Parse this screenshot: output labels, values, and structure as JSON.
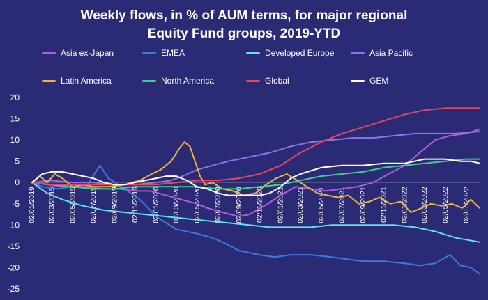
{
  "chart_data": {
    "type": "line",
    "title_line1": "Weekly flows, in % of AUM terms, for major regional",
    "title_line2": "Equity Fund groups, 2019-YTD",
    "xlabel": "",
    "ylabel": "",
    "ylim": [
      -25,
      20
    ],
    "yticks": [
      20,
      15,
      10,
      5,
      0,
      -5,
      -10,
      -15,
      -20,
      -25
    ],
    "xlim": [
      "2019-01-02",
      "2022-08-10"
    ],
    "xticks": [
      "02/01/2019",
      "02/03/2019",
      "02/05/2019",
      "02/07/2019",
      "02/09/2019",
      "02/11/2019",
      "02/01/2020",
      "02/03/2020",
      "02/05/2020",
      "02/07/2020",
      "02/09/2020",
      "02/11/2020",
      "02/01/2021",
      "02/03/2021",
      "02/05/2021",
      "02/07/2021",
      "02/09/2021",
      "02/11/2021",
      "02/01/2022",
      "02/03/2022",
      "02/05/2022",
      "02/07/2022"
    ],
    "grid": false,
    "legend_position": "top",
    "series": [
      {
        "name": "Asia ex-Japan",
        "color": "#b45bde",
        "points": [
          [
            "2019-01-02",
            0
          ],
          [
            "2019-02-15",
            -0.5
          ],
          [
            "2019-04-01",
            -1
          ],
          [
            "2019-06-01",
            -1
          ],
          [
            "2019-08-01",
            -1.5
          ],
          [
            "2019-09-15",
            -1.5
          ],
          [
            "2019-11-01",
            -2
          ],
          [
            "2019-12-15",
            -2
          ],
          [
            "2020-02-01",
            -3
          ],
          [
            "2020-03-15",
            -4
          ],
          [
            "2020-05-01",
            -5
          ],
          [
            "2020-06-01",
            -6
          ],
          [
            "2020-07-15",
            -7
          ],
          [
            "2020-09-01",
            -8
          ],
          [
            "2020-10-01",
            -7.5
          ],
          [
            "2020-11-15",
            -5.5
          ],
          [
            "2021-01-02",
            -3
          ],
          [
            "2021-02-15",
            -1
          ],
          [
            "2021-04-01",
            -1.5
          ],
          [
            "2021-05-15",
            -2
          ],
          [
            "2021-07-01",
            -1.5
          ],
          [
            "2021-08-15",
            -1
          ],
          [
            "2021-10-01",
            0
          ],
          [
            "2021-11-15",
            2
          ],
          [
            "2022-01-02",
            4
          ],
          [
            "2022-02-15",
            7
          ],
          [
            "2022-04-01",
            10
          ],
          [
            "2022-05-15",
            11
          ],
          [
            "2022-07-01",
            11.5
          ],
          [
            "2022-08-10",
            12.5
          ]
        ]
      },
      {
        "name": "EMEA",
        "color": "#3c7ae0",
        "points": [
          [
            "2019-01-02",
            0
          ],
          [
            "2019-02-01",
            -1
          ],
          [
            "2019-03-15",
            -1.5
          ],
          [
            "2019-05-01",
            -1
          ],
          [
            "2019-06-15",
            -0.5
          ],
          [
            "2019-07-20",
            4
          ],
          [
            "2019-08-15",
            1
          ],
          [
            "2019-10-01",
            -1.5
          ],
          [
            "2019-11-15",
            -4
          ],
          [
            "2020-01-02",
            -8
          ],
          [
            "2020-03-01",
            -11
          ],
          [
            "2020-05-01",
            -12
          ],
          [
            "2020-06-15",
            -13
          ],
          [
            "2020-07-15",
            -14
          ],
          [
            "2020-09-01",
            -16
          ],
          [
            "2020-11-01",
            -17
          ],
          [
            "2020-12-15",
            -17.5
          ],
          [
            "2021-02-01",
            -17
          ],
          [
            "2021-04-01",
            -17
          ],
          [
            "2021-06-01",
            -17.5
          ],
          [
            "2021-07-15",
            -18
          ],
          [
            "2021-09-01",
            -18.5
          ],
          [
            "2021-11-01",
            -18.5
          ],
          [
            "2022-01-02",
            -19
          ],
          [
            "2022-02-15",
            -19.5
          ],
          [
            "2022-04-01",
            -19
          ],
          [
            "2022-05-15",
            -17
          ],
          [
            "2022-06-15",
            -19.5
          ],
          [
            "2022-07-15",
            -20
          ],
          [
            "2022-08-10",
            -21.5
          ]
        ]
      },
      {
        "name": "Developed Europe",
        "color": "#5fe3ef",
        "points": [
          [
            "2019-01-02",
            0
          ],
          [
            "2019-02-15",
            -2.5
          ],
          [
            "2019-04-01",
            -4
          ],
          [
            "2019-06-01",
            -5.5
          ],
          [
            "2019-08-01",
            -6.5
          ],
          [
            "2019-10-01",
            -7
          ],
          [
            "2019-12-01",
            -7.5
          ],
          [
            "2020-02-01",
            -8
          ],
          [
            "2020-04-01",
            -8.5
          ],
          [
            "2020-06-01",
            -9
          ],
          [
            "2020-08-01",
            -9.5
          ],
          [
            "2020-10-01",
            -10
          ],
          [
            "2020-12-01",
            -10.5
          ],
          [
            "2021-02-01",
            -10.5
          ],
          [
            "2021-04-01",
            -10.5
          ],
          [
            "2021-06-01",
            -10
          ],
          [
            "2021-08-01",
            -10
          ],
          [
            "2021-10-01",
            -10
          ],
          [
            "2021-12-01",
            -10
          ],
          [
            "2022-02-01",
            -10.5
          ],
          [
            "2022-04-01",
            -11.5
          ],
          [
            "2022-06-01",
            -13
          ],
          [
            "2022-08-10",
            -14
          ]
        ]
      },
      {
        "name": "Asia Pacific",
        "color": "#8f72ec",
        "points": [
          [
            "2019-01-02",
            0
          ],
          [
            "2019-03-01",
            0.5
          ],
          [
            "2019-05-01",
            0
          ],
          [
            "2019-07-01",
            0
          ],
          [
            "2019-09-01",
            -0.5
          ],
          [
            "2019-11-01",
            -0.5
          ],
          [
            "2020-01-02",
            0
          ],
          [
            "2020-02-15",
            0.5
          ],
          [
            "2020-03-20",
            1.5
          ],
          [
            "2020-05-01",
            3
          ],
          [
            "2020-06-15",
            4
          ],
          [
            "2020-08-01",
            5
          ],
          [
            "2020-10-01",
            6
          ],
          [
            "2020-12-01",
            7
          ],
          [
            "2021-02-01",
            8.5
          ],
          [
            "2021-04-01",
            9.5
          ],
          [
            "2021-06-01",
            10
          ],
          [
            "2021-08-01",
            10.5
          ],
          [
            "2021-10-01",
            10.5
          ],
          [
            "2021-12-01",
            11
          ],
          [
            "2022-02-01",
            11.5
          ],
          [
            "2022-04-01",
            11.5
          ],
          [
            "2022-06-01",
            11.5
          ],
          [
            "2022-08-10",
            12
          ]
        ]
      },
      {
        "name": "Latin America",
        "color": "#f2b43c",
        "points": [
          [
            "2019-01-02",
            0
          ],
          [
            "2019-01-25",
            1.5
          ],
          [
            "2019-02-15",
            0
          ],
          [
            "2019-03-10",
            2
          ],
          [
            "2019-04-01",
            1
          ],
          [
            "2019-05-01",
            -1
          ],
          [
            "2019-06-01",
            -0.5
          ],
          [
            "2019-07-01",
            -1
          ],
          [
            "2019-08-15",
            -1
          ],
          [
            "2019-10-01",
            -0.5
          ],
          [
            "2019-11-15",
            0.5
          ],
          [
            "2019-12-20",
            2
          ],
          [
            "2020-01-15",
            3
          ],
          [
            "2020-02-15",
            5
          ],
          [
            "2020-03-10",
            8
          ],
          [
            "2020-03-25",
            9.5
          ],
          [
            "2020-04-10",
            8.5
          ],
          [
            "2020-04-25",
            5
          ],
          [
            "2020-05-10",
            1.5
          ],
          [
            "2020-05-25",
            -0.5
          ],
          [
            "2020-06-15",
            0
          ],
          [
            "2020-07-15",
            -1.5
          ],
          [
            "2020-08-15",
            -2
          ],
          [
            "2020-09-15",
            -3
          ],
          [
            "2020-10-20",
            -2.5
          ],
          [
            "2020-11-20",
            -0.5
          ],
          [
            "2020-12-20",
            1
          ],
          [
            "2021-01-20",
            2
          ],
          [
            "2021-02-20",
            0.5
          ],
          [
            "2021-03-20",
            -1
          ],
          [
            "2021-04-20",
            -2.5
          ],
          [
            "2021-05-20",
            -3
          ],
          [
            "2021-06-20",
            -3.5
          ],
          [
            "2021-07-20",
            -3
          ],
          [
            "2021-08-20",
            -5
          ],
          [
            "2021-09-20",
            -4.5
          ],
          [
            "2021-10-20",
            -3.5
          ],
          [
            "2021-11-20",
            -5
          ],
          [
            "2021-12-20",
            -4.5
          ],
          [
            "2022-01-20",
            -7
          ],
          [
            "2022-02-20",
            -6
          ],
          [
            "2022-03-20",
            -5
          ],
          [
            "2022-04-20",
            -5.5
          ],
          [
            "2022-05-20",
            -5
          ],
          [
            "2022-06-20",
            -6
          ],
          [
            "2022-07-15",
            -4
          ],
          [
            "2022-08-10",
            -6
          ]
        ]
      },
      {
        "name": "North America",
        "color": "#3fcf8e",
        "points": [
          [
            "2019-01-02",
            0
          ],
          [
            "2019-03-01",
            -0.5
          ],
          [
            "2019-05-01",
            -1
          ],
          [
            "2019-07-01",
            -1.5
          ],
          [
            "2019-09-01",
            -1.5
          ],
          [
            "2019-11-01",
            -1
          ],
          [
            "2020-01-02",
            -1
          ],
          [
            "2020-03-01",
            -1
          ],
          [
            "2020-05-01",
            -1
          ],
          [
            "2020-07-01",
            -1.5
          ],
          [
            "2020-09-01",
            -1.5
          ],
          [
            "2020-11-01",
            -1
          ],
          [
            "2021-01-02",
            -0.5
          ],
          [
            "2021-03-01",
            0.5
          ],
          [
            "2021-05-01",
            1.5
          ],
          [
            "2021-07-01",
            2
          ],
          [
            "2021-09-01",
            2.5
          ],
          [
            "2021-11-01",
            3.5
          ],
          [
            "2022-01-02",
            4
          ],
          [
            "2022-03-01",
            4.5
          ],
          [
            "2022-05-01",
            5
          ],
          [
            "2022-07-01",
            5.5
          ],
          [
            "2022-08-10",
            5.5
          ]
        ]
      },
      {
        "name": "Global",
        "color": "#e8455f",
        "points": [
          [
            "2019-01-02",
            0
          ],
          [
            "2019-03-01",
            -0.5
          ],
          [
            "2019-05-01",
            -0.5
          ],
          [
            "2019-07-01",
            -0.5
          ],
          [
            "2019-09-01",
            -0.5
          ],
          [
            "2019-11-01",
            -0.5
          ],
          [
            "2020-01-02",
            -0.5
          ],
          [
            "2020-03-01",
            0
          ],
          [
            "2020-05-01",
            0.5
          ],
          [
            "2020-07-01",
            0.5
          ],
          [
            "2020-09-01",
            1
          ],
          [
            "2020-11-01",
            2
          ],
          [
            "2021-01-02",
            4
          ],
          [
            "2021-03-01",
            7
          ],
          [
            "2021-05-01",
            9.5
          ],
          [
            "2021-07-01",
            11.5
          ],
          [
            "2021-09-01",
            13
          ],
          [
            "2021-11-01",
            14.5
          ],
          [
            "2022-01-02",
            16
          ],
          [
            "2022-03-01",
            17
          ],
          [
            "2022-05-01",
            17.5
          ],
          [
            "2022-07-01",
            17.5
          ],
          [
            "2022-08-10",
            17.5
          ]
        ]
      },
      {
        "name": "GEM",
        "color": "#ffffff",
        "points": [
          [
            "2019-01-02",
            0
          ],
          [
            "2019-02-01",
            2
          ],
          [
            "2019-03-01",
            2.5
          ],
          [
            "2019-04-01",
            2.5
          ],
          [
            "2019-05-01",
            2
          ],
          [
            "2019-06-01",
            1.5
          ],
          [
            "2019-07-01",
            1
          ],
          [
            "2019-08-01",
            0
          ],
          [
            "2019-09-01",
            -0.5
          ],
          [
            "2019-10-01",
            -0.5
          ],
          [
            "2019-11-01",
            0
          ],
          [
            "2019-12-01",
            0.5
          ],
          [
            "2020-01-02",
            1
          ],
          [
            "2020-02-01",
            1.5
          ],
          [
            "2020-03-01",
            1.5
          ],
          [
            "2020-04-01",
            0.5
          ],
          [
            "2020-05-01",
            -1
          ],
          [
            "2020-06-01",
            -1.5
          ],
          [
            "2020-07-01",
            -2.5
          ],
          [
            "2020-08-01",
            -3
          ],
          [
            "2020-09-01",
            -3
          ],
          [
            "2020-10-01",
            -3
          ],
          [
            "2020-11-01",
            -3
          ],
          [
            "2020-12-01",
            -2.5
          ],
          [
            "2021-01-02",
            -1
          ],
          [
            "2021-02-01",
            1
          ],
          [
            "2021-03-01",
            2
          ],
          [
            "2021-05-01",
            3.5
          ],
          [
            "2021-07-01",
            4
          ],
          [
            "2021-09-01",
            4
          ],
          [
            "2021-11-01",
            4.5
          ],
          [
            "2022-01-02",
            4.5
          ],
          [
            "2022-03-01",
            5.5
          ],
          [
            "2022-05-01",
            5.5
          ],
          [
            "2022-06-15",
            5
          ],
          [
            "2022-07-15",
            5
          ],
          [
            "2022-08-10",
            4.5
          ]
        ]
      }
    ]
  }
}
